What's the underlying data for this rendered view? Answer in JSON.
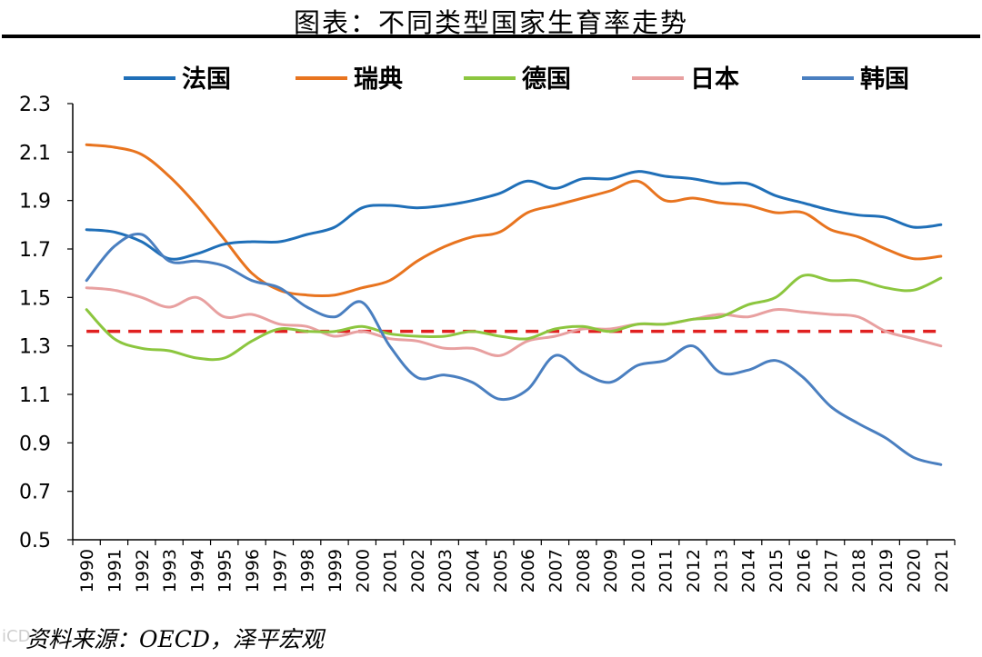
{
  "header": {
    "title": "图表：不同类型国家生育率走势"
  },
  "footer": {
    "source": "资料来源：OECD，泽平宏观",
    "watermark": "iCD"
  },
  "chart_data": {
    "type": "line",
    "title": "图表：不同类型国家生育率走势",
    "xlabel": "",
    "ylabel": "",
    "ylim": [
      0.5,
      2.3
    ],
    "yticks": [
      "0.5",
      "0.7",
      "0.9",
      "1.1",
      "1.3",
      "1.5",
      "1.7",
      "1.9",
      "2.1",
      "2.3"
    ],
    "x": [
      "1990",
      "1991",
      "1992",
      "1993",
      "1994",
      "1995",
      "1996",
      "1997",
      "1998",
      "1999",
      "2000",
      "2001",
      "2002",
      "2003",
      "2004",
      "2005",
      "2006",
      "2007",
      "2008",
      "2009",
      "2010",
      "2011",
      "2012",
      "2013",
      "2014",
      "2015",
      "2016",
      "2017",
      "2018",
      "2019",
      "2020",
      "2021"
    ],
    "legend_position": "top",
    "reference_line": {
      "value": 1.36,
      "color": "#e02020",
      "style": "dashed"
    },
    "series": [
      {
        "name": "法国",
        "color": "#1f6fb8",
        "values": [
          1.78,
          1.77,
          1.73,
          1.66,
          1.68,
          1.72,
          1.73,
          1.73,
          1.76,
          1.79,
          1.87,
          1.88,
          1.87,
          1.88,
          1.9,
          1.93,
          1.98,
          1.95,
          1.99,
          1.99,
          2.02,
          2.0,
          1.99,
          1.97,
          1.97,
          1.92,
          1.89,
          1.86,
          1.84,
          1.83,
          1.79,
          1.8
        ]
      },
      {
        "name": "瑞典",
        "color": "#e8741f",
        "values": [
          2.13,
          2.12,
          2.09,
          2.0,
          1.88,
          1.74,
          1.6,
          1.53,
          1.51,
          1.51,
          1.54,
          1.57,
          1.65,
          1.71,
          1.75,
          1.77,
          1.85,
          1.88,
          1.91,
          1.94,
          1.98,
          1.9,
          1.91,
          1.89,
          1.88,
          1.85,
          1.85,
          1.78,
          1.75,
          1.7,
          1.66,
          1.67
        ]
      },
      {
        "name": "德国",
        "color": "#8cc63f",
        "values": [
          1.45,
          1.33,
          1.29,
          1.28,
          1.25,
          1.25,
          1.32,
          1.37,
          1.36,
          1.36,
          1.38,
          1.35,
          1.34,
          1.34,
          1.36,
          1.34,
          1.33,
          1.37,
          1.38,
          1.36,
          1.39,
          1.39,
          1.41,
          1.42,
          1.47,
          1.5,
          1.59,
          1.57,
          1.57,
          1.54,
          1.53,
          1.58
        ]
      },
      {
        "name": "日本",
        "color": "#e8a0a0",
        "values": [
          1.54,
          1.53,
          1.5,
          1.46,
          1.5,
          1.42,
          1.43,
          1.39,
          1.38,
          1.34,
          1.36,
          1.33,
          1.32,
          1.29,
          1.29,
          1.26,
          1.32,
          1.34,
          1.37,
          1.37,
          1.39,
          1.39,
          1.41,
          1.43,
          1.42,
          1.45,
          1.44,
          1.43,
          1.42,
          1.36,
          1.33,
          1.3
        ]
      },
      {
        "name": "韩国",
        "color": "#4a7fc0",
        "values": [
          1.57,
          1.71,
          1.76,
          1.65,
          1.65,
          1.63,
          1.57,
          1.54,
          1.46,
          1.42,
          1.48,
          1.3,
          1.17,
          1.18,
          1.15,
          1.08,
          1.12,
          1.26,
          1.19,
          1.15,
          1.22,
          1.24,
          1.3,
          1.19,
          1.2,
          1.24,
          1.17,
          1.05,
          0.98,
          0.92,
          0.84,
          0.81
        ]
      }
    ]
  }
}
